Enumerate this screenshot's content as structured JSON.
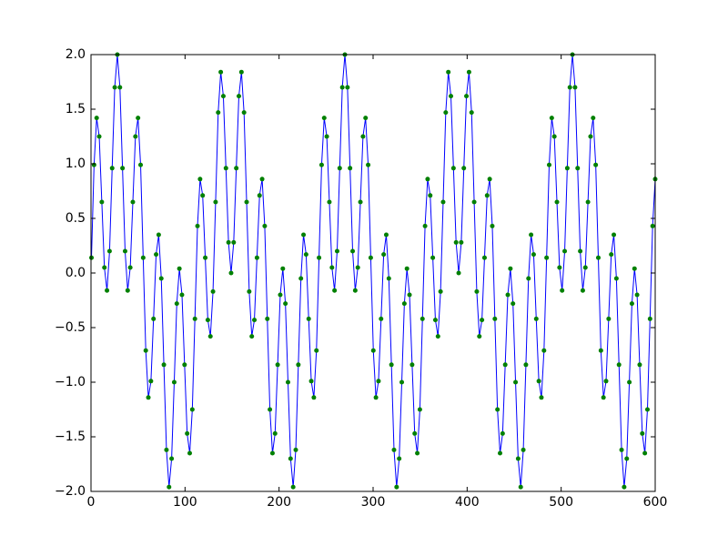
{
  "chart_data": {
    "type": "line",
    "x": [
      0.5,
      3.25,
      6,
      8.75,
      11.5,
      14.25,
      17,
      19.75,
      22.5,
      25.25,
      28,
      30.75,
      33.5,
      36.25,
      39,
      41.75,
      44.5,
      47.25,
      50,
      52.75,
      55.5,
      58.25,
      61,
      63.75,
      66.5,
      69.25,
      72,
      74.75,
      77.5,
      80.25,
      83,
      85.75,
      88.5,
      91.25,
      94,
      96.75,
      99.5,
      102.25,
      105,
      107.75,
      110.5,
      113.25,
      116,
      118.75,
      121.5,
      124.25,
      127,
      129.75,
      132.5,
      135.25,
      138,
      140.75,
      143.5,
      146.25,
      149,
      151.75,
      154.5,
      157.25,
      160,
      162.75,
      165.5,
      168.25,
      171,
      173.75,
      176.5,
      179.25,
      182,
      184.75,
      187.5,
      190.25,
      193,
      195.75,
      198.5,
      201.25,
      204,
      206.75,
      209.5,
      212.25,
      215,
      217.75,
      220.5,
      223.25,
      226,
      228.75,
      231.5,
      234.25,
      237,
      239.75,
      242.5,
      245.25,
      248,
      250.75,
      253.5,
      256.25,
      259,
      261.75,
      264.5,
      267.25,
      270,
      272.75,
      275.5,
      278.25,
      281,
      283.75,
      286.5,
      289.25,
      292,
      294.75,
      297.5,
      300.25,
      303,
      305.75,
      308.5,
      311.25,
      314,
      316.75,
      319.5,
      322.25,
      325,
      327.75,
      330.5,
      333.25,
      336,
      338.75,
      341.5,
      344.25,
      347,
      349.75,
      352.5,
      355.25,
      358,
      360.75,
      363.5,
      366.25,
      369,
      371.75,
      374.5,
      377.25,
      380,
      382.75,
      385.5,
      388.25,
      391,
      393.75,
      396.5,
      399.25,
      402,
      404.75,
      407.5,
      410.25,
      413,
      415.75,
      418.5,
      421.25,
      424,
      426.75,
      429.5,
      432.25,
      435,
      437.75,
      440.5,
      443.25,
      446,
      448.75,
      451.5,
      454.25,
      457,
      459.75,
      462.5,
      465.25,
      468,
      470.75,
      473.5,
      476.25,
      479,
      481.75,
      484.5,
      487.25,
      490,
      492.75,
      495.5,
      498.25,
      501,
      503.75,
      506.5,
      509.25,
      512,
      514.75,
      517.5,
      520.25,
      523,
      525.75,
      528.5,
      531.25,
      534,
      536.75,
      539.5,
      542.25,
      545,
      547.75,
      550.5,
      553.25,
      556,
      558.75,
      561.5,
      564.25,
      567,
      569.75,
      572.5,
      575.25,
      578,
      580.75,
      583.5,
      586.25,
      589,
      591.75,
      594.5,
      597.25,
      600
    ],
    "series": [
      {
        "color": "#0000ff",
        "marker_color": "#008000",
        "values": [
          0.14,
          0.99,
          1.42,
          1.25,
          0.65,
          0.05,
          -0.16,
          0.2,
          0.96,
          1.7,
          2,
          1.7,
          0.96,
          0.2,
          -0.16,
          0.05,
          0.65,
          1.25,
          1.42,
          0.99,
          0.14,
          -0.71,
          -1.14,
          -0.99,
          -0.42,
          0.17,
          0.35,
          -0.05,
          -0.84,
          -1.62,
          -1.96,
          -1.7,
          -1,
          -0.28,
          0.04,
          -0.2,
          -0.84,
          -1.47,
          -1.65,
          -1.25,
          -0.42,
          0.43,
          0.86,
          0.71,
          0.14,
          -0.43,
          -0.58,
          -0.17,
          0.65,
          1.47,
          1.84,
          1.62,
          0.96,
          0.28,
          0,
          0.28,
          0.96,
          1.62,
          1.84,
          1.47,
          0.65,
          -0.17,
          -0.58,
          -0.43,
          0.14,
          0.71,
          0.86,
          0.43,
          -0.42,
          -1.25,
          -1.65,
          -1.47,
          -0.84,
          -0.2,
          0.04,
          -0.28,
          -1,
          -1.7,
          -1.96,
          -1.62,
          -0.84,
          -0.05,
          0.35,
          0.17,
          -0.42,
          -0.99,
          -1.14,
          -0.71,
          0.14,
          0.99,
          1.42,
          1.25,
          0.65,
          0.05,
          -0.16,
          0.2,
          0.96,
          1.7,
          2,
          1.7,
          0.96,
          0.2,
          -0.16,
          0.05,
          0.65,
          1.25,
          1.42,
          0.99,
          0.14,
          -0.71,
          -1.14,
          -0.99,
          -0.42,
          0.17,
          0.35,
          -0.05,
          -0.84,
          -1.62,
          -1.96,
          -1.7,
          -1,
          -0.28,
          0.04,
          -0.2,
          -0.84,
          -1.47,
          -1.65,
          -1.25,
          -0.42,
          0.43,
          0.86,
          0.71,
          0.14,
          -0.43,
          -0.58,
          -0.17,
          0.65,
          1.47,
          1.84,
          1.62,
          0.96,
          0.28,
          0,
          0.28,
          0.96,
          1.62,
          1.84,
          1.47,
          0.65,
          -0.17,
          -0.58,
          -0.43,
          0.14,
          0.71,
          0.86,
          0.43,
          -0.42,
          -1.25,
          -1.65,
          -1.47,
          -0.84,
          -0.2,
          0.04,
          -0.28,
          -1,
          -1.7,
          -1.96,
          -1.62,
          -0.84,
          -0.05,
          0.35,
          0.17,
          -0.42,
          -0.99,
          -1.14,
          -0.71,
          0.14,
          0.99,
          1.42,
          1.25,
          0.65,
          0.05,
          -0.16,
          0.2,
          0.96,
          1.7,
          2,
          1.7,
          0.96,
          0.2,
          -0.16,
          0.05,
          0.65,
          1.25,
          1.42,
          0.99,
          0.14,
          -0.71,
          -1.14,
          -0.99,
          -0.42,
          0.17,
          0.35,
          -0.05,
          -0.84,
          -1.62,
          -1.96,
          -1.7,
          -1,
          -0.28,
          0.04,
          -0.2,
          -0.84,
          -1.47,
          -1.65,
          -1.25,
          -0.42,
          0.43,
          0.86
        ]
      }
    ],
    "xlim": [
      0,
      600
    ],
    "xticks": [
      0,
      100,
      200,
      300,
      400,
      500,
      600
    ],
    "ylim": [
      -2,
      2
    ],
    "yticks": [
      {
        "value": -2,
        "label": "−2.0"
      },
      {
        "value": -1.5,
        "label": "−1.5"
      },
      {
        "value": -1,
        "label": "−1.0"
      },
      {
        "value": -0.5,
        "label": "−0.5"
      },
      {
        "value": 0,
        "label": "0.0"
      },
      0.5,
      {
        "value": 1,
        "label": "1.0"
      },
      1.5,
      {
        "value": 2,
        "label": "2.0"
      }
    ],
    "grid": false
  }
}
